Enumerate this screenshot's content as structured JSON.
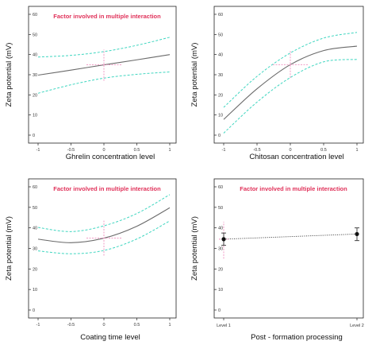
{
  "chart_data": [
    {
      "id": "ghrelin",
      "type": "line",
      "xlabel": "Ghrelin concentration level",
      "ylabel": "Zeta potential (mV)",
      "annotation": "Factor involved in multiple interaction",
      "xlim": [
        -1,
        1
      ],
      "ylim": [
        0,
        60
      ],
      "xticks": [
        "-1",
        "-0.5",
        "0",
        "0.5",
        "1"
      ],
      "yticks": [
        "0",
        "10",
        "20",
        "30",
        "40",
        "50",
        "60"
      ],
      "x": [
        -1,
        -0.5,
        0,
        0.5,
        1
      ],
      "series": [
        {
          "role": "fit",
          "values": [
            29.8,
            32.3,
            34.9,
            37.4,
            40.0
          ]
        },
        {
          "role": "upper",
          "values": [
            38.8,
            39.6,
            41.5,
            44.6,
            48.6
          ]
        },
        {
          "role": "lower",
          "values": [
            20.8,
            25.0,
            28.3,
            30.2,
            31.4
          ]
        }
      ],
      "design_point": {
        "x": 0,
        "y": 34.9,
        "error_range": [
          27,
          42.5
        ]
      }
    },
    {
      "id": "chitosan",
      "type": "line",
      "xlabel": "Chitosan concentration level",
      "ylabel": "Zeta potential (mV)",
      "annotation": "",
      "xlim": [
        -1,
        1
      ],
      "ylim": [
        0,
        60
      ],
      "xticks": [
        "-1",
        "-0.5",
        "0",
        "0.5",
        "1"
      ],
      "yticks": [
        "0",
        "10",
        "20",
        "30",
        "40",
        "50",
        "60"
      ],
      "x": [
        -1,
        -0.5,
        0,
        0.5,
        1
      ],
      "series": [
        {
          "role": "fit",
          "values": [
            7.8,
            23.0,
            35.0,
            42.0,
            44.2
          ]
        },
        {
          "role": "upper",
          "values": [
            13.8,
            29.2,
            40.8,
            48.2,
            51.0
          ]
        },
        {
          "role": "lower",
          "values": [
            1.0,
            16.4,
            28.6,
            36.4,
            37.6
          ]
        }
      ],
      "design_point": {
        "x": 0,
        "y": 35.0,
        "error_range": [
          28.5,
          42.0
        ]
      }
    },
    {
      "id": "coating",
      "type": "line",
      "xlabel": "Coating time level",
      "ylabel": "Zeta potential (mV)",
      "annotation": "Factor involved in multiple interaction",
      "xlim": [
        -1,
        1
      ],
      "ylim": [
        0,
        60
      ],
      "xticks": [
        "-1",
        "-0.5",
        "0",
        "0.5",
        "1"
      ],
      "yticks": [
        "0",
        "10",
        "20",
        "30",
        "40",
        "50",
        "60"
      ],
      "x": [
        -1,
        -0.5,
        0,
        0.5,
        1
      ],
      "series": [
        {
          "role": "fit",
          "values": [
            34.5,
            32.8,
            35.0,
            40.8,
            49.8
          ]
        },
        {
          "role": "upper",
          "values": [
            40.2,
            38.2,
            41.0,
            47.0,
            56.2
          ]
        },
        {
          "role": "lower",
          "values": [
            28.8,
            27.4,
            29.0,
            34.6,
            43.4
          ]
        }
      ],
      "design_point": {
        "x": 0,
        "y": 35.0,
        "error_range": [
          26.5,
          43.5
        ]
      }
    },
    {
      "id": "postformation",
      "type": "scatter",
      "xlabel": "Post - formation processing",
      "ylabel": "Zeta potential (mV)",
      "annotation": "Factor involved in multiple interaction",
      "xlim": [
        0,
        1
      ],
      "ylim": [
        0,
        60
      ],
      "categories": [
        "Level 1",
        "Level 2"
      ],
      "yticks": [
        "0",
        "10",
        "20",
        "30",
        "40",
        "50",
        "60"
      ],
      "values": [
        34.5,
        37.0
      ],
      "errors": [
        [
          31.5,
          37.5
        ],
        [
          33.8,
          40.0
        ]
      ],
      "design_point": {
        "x": 0,
        "y": 34.5,
        "error_range": [
          25.0,
          43.0
        ]
      }
    }
  ]
}
